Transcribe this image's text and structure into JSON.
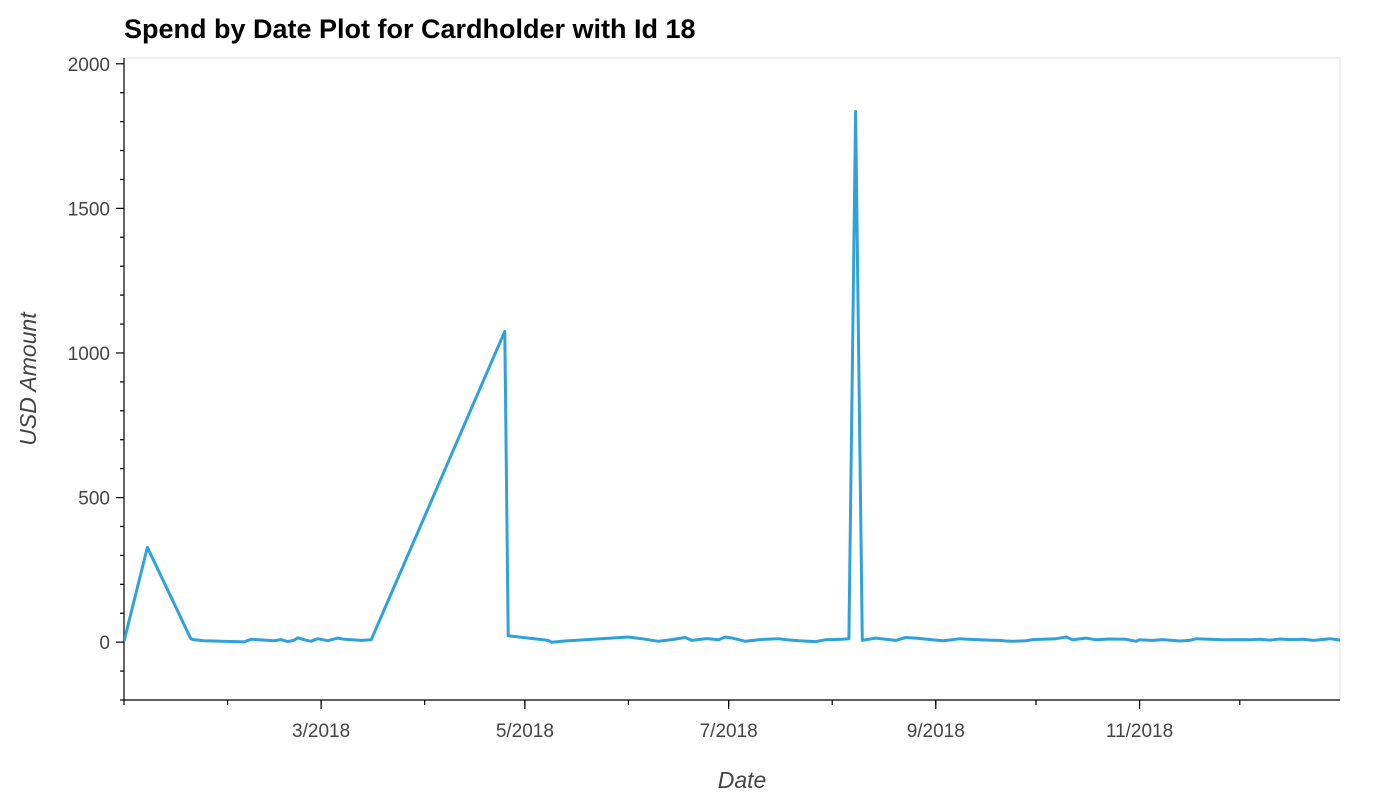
{
  "chart_data": {
    "type": "line",
    "title": "Spend by Date Plot for Cardholder with Id 18",
    "xlabel": "Date",
    "ylabel": "USD Amount",
    "ylim": [
      -200,
      2020
    ],
    "xlim": [
      "2018-01-01",
      "2018-12-31"
    ],
    "yticks": [
      0,
      500,
      1000,
      1500,
      2000
    ],
    "xticks": [
      {
        "date": "2018-03-01",
        "label": "3/2018"
      },
      {
        "date": "2018-05-01",
        "label": "5/2018"
      },
      {
        "date": "2018-07-01",
        "label": "7/2018"
      },
      {
        "date": "2018-09-01",
        "label": "9/2018"
      },
      {
        "date": "2018-11-01",
        "label": "11/2018"
      }
    ],
    "grid": false,
    "color": "#30a2da",
    "series": [
      {
        "x": [
          "2018-01-01",
          "2018-01-08",
          "2018-01-21",
          "2018-01-22",
          "2018-01-25",
          "2018-02-06",
          "2018-02-08",
          "2018-02-15",
          "2018-02-17",
          "2018-02-19",
          "2018-02-21",
          "2018-02-22",
          "2018-02-24",
          "2018-02-26",
          "2018-02-28",
          "2018-03-03",
          "2018-03-06",
          "2018-03-08",
          "2018-03-13",
          "2018-03-16",
          "2018-04-25",
          "2018-04-26",
          "2018-05-08",
          "2018-05-09",
          "2018-05-13",
          "2018-06-01",
          "2018-06-05",
          "2018-06-10",
          "2018-06-14",
          "2018-06-18",
          "2018-06-20",
          "2018-06-24",
          "2018-06-25",
          "2018-06-28",
          "2018-06-30",
          "2018-07-02",
          "2018-07-05",
          "2018-07-06",
          "2018-07-10",
          "2018-07-12",
          "2018-07-16",
          "2018-07-18",
          "2018-07-22",
          "2018-07-27",
          "2018-07-30",
          "2018-08-04",
          "2018-08-06",
          "2018-08-08",
          "2018-08-10",
          "2018-08-14",
          "2018-08-20",
          "2018-08-23",
          "2018-08-26",
          "2018-09-03",
          "2018-09-06",
          "2018-09-08",
          "2018-09-13",
          "2018-09-17",
          "2018-09-20",
          "2018-09-22",
          "2018-09-24",
          "2018-09-28",
          "2018-09-30",
          "2018-10-07",
          "2018-10-10",
          "2018-10-12",
          "2018-10-16",
          "2018-10-19",
          "2018-10-23",
          "2018-10-28",
          "2018-10-31",
          "2018-11-01",
          "2018-11-05",
          "2018-11-08",
          "2018-11-13",
          "2018-11-16",
          "2018-11-18",
          "2018-11-26",
          "2018-12-01",
          "2018-12-04",
          "2018-12-07",
          "2018-12-10",
          "2018-12-13",
          "2018-12-16",
          "2018-12-20",
          "2018-12-23",
          "2018-12-28",
          "2018-12-31"
        ],
        "y": [
          3,
          328,
          12,
          8,
          5,
          1,
          10,
          5,
          9,
          2,
          7,
          15,
          8,
          3,
          12,
          5,
          14,
          10,
          6,
          8,
          1075,
          22,
          6,
          0,
          4,
          18,
          12,
          3,
          9,
          16,
          6,
          12,
          12,
          8,
          18,
          14,
          6,
          3,
          8,
          10,
          12,
          9,
          5,
          2,
          8,
          10,
          12,
          1835,
          6,
          14,
          6,
          16,
          14,
          5,
          8,
          12,
          9,
          7,
          6,
          4,
          3,
          5,
          9,
          12,
          18,
          8,
          14,
          8,
          11,
          10,
          3,
          8,
          6,
          9,
          4,
          6,
          12,
          8,
          9,
          8,
          10,
          7,
          11,
          9,
          10,
          6,
          12,
          7
        ]
      }
    ]
  }
}
